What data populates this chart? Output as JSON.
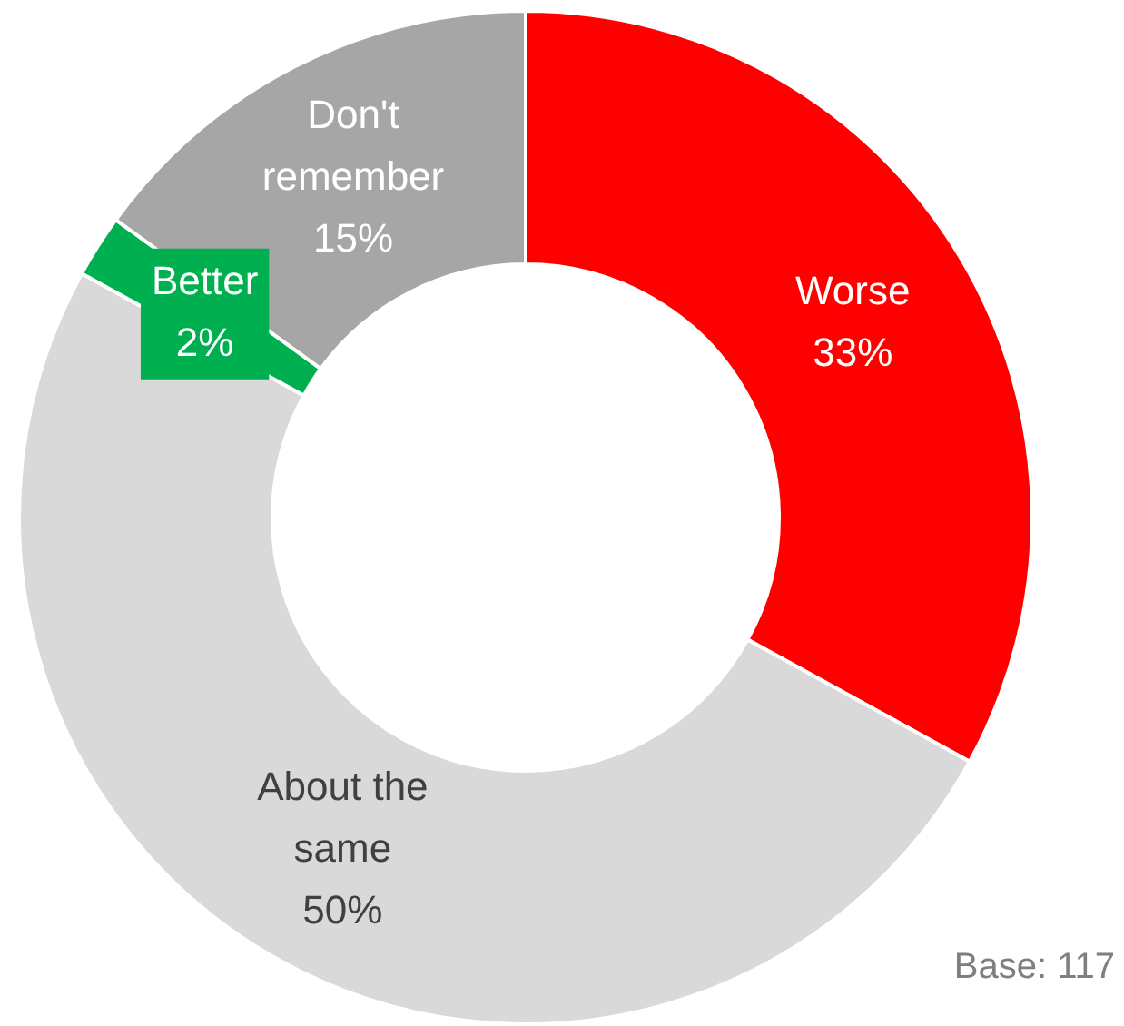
{
  "chart_data": {
    "type": "donut",
    "categories": [
      "Worse",
      "About the same",
      "Better",
      "Don't remember"
    ],
    "values": [
      33,
      50,
      2,
      15
    ],
    "colors": [
      "#ff0000",
      "#d9d9d9",
      "#00b050",
      "#a6a6a6"
    ],
    "value_labels": [
      "33%",
      "50%",
      "2%",
      "15%"
    ],
    "legend": false,
    "annotations": [
      "Base: 117"
    ]
  }
}
